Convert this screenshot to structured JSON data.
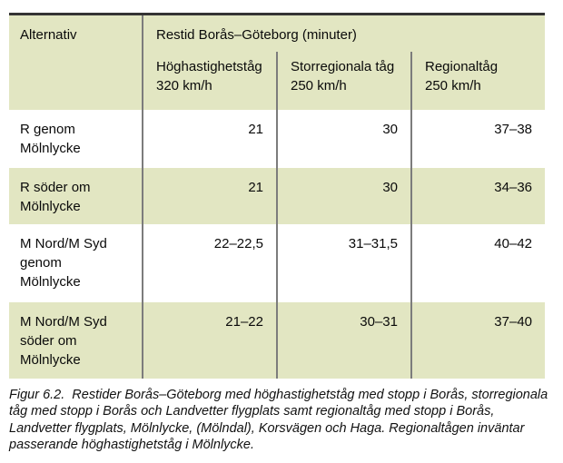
{
  "table": {
    "corner_header": "Alternativ",
    "title": "Restid Borås–Göteborg (minuter)",
    "columns": [
      {
        "label_lines": [
          "Höghastighetståg",
          "320 km/h"
        ]
      },
      {
        "label_lines": [
          "Storregionala tåg",
          "250 km/h"
        ]
      },
      {
        "label_lines": [
          "Regionaltåg",
          "250 km/h"
        ]
      }
    ],
    "rows": [
      {
        "label_lines": [
          "R genom",
          "Mölnlycke"
        ],
        "values": [
          "21",
          "30",
          "37–38"
        ]
      },
      {
        "label_lines": [
          "R söder om",
          "Mölnlycke"
        ],
        "values": [
          "21",
          "30",
          "34–36"
        ]
      },
      {
        "label_lines": [
          "M Nord/M Syd",
          "genom",
          "Mölnlycke"
        ],
        "values": [
          "22–22,5",
          "31–31,5",
          "40–42"
        ]
      },
      {
        "label_lines": [
          "M Nord/M Syd",
          "söder om",
          "Mölnlycke"
        ],
        "values": [
          "21–22",
          "30–31",
          "37–40"
        ]
      }
    ]
  },
  "caption": {
    "lines": [
      "Figur 6.2.  Restider Borås–Göteborg med höghastighetståg med stopp i Borås, storregionala",
      "tåg med stopp i Borås och Landvetter flygplats samt regionaltåg med stopp i Borås,",
      "Landvetter flygplats, Mölnlycke, (Mölndal), Korsvägen och Haga. Regionaltågen inväntar",
      "passerande höghastighetståg i Mölnlycke."
    ]
  },
  "colors": {
    "row_band_green": "#e2e6c2",
    "divider_gray": "#7c7c7c",
    "top_border": "#343434"
  }
}
